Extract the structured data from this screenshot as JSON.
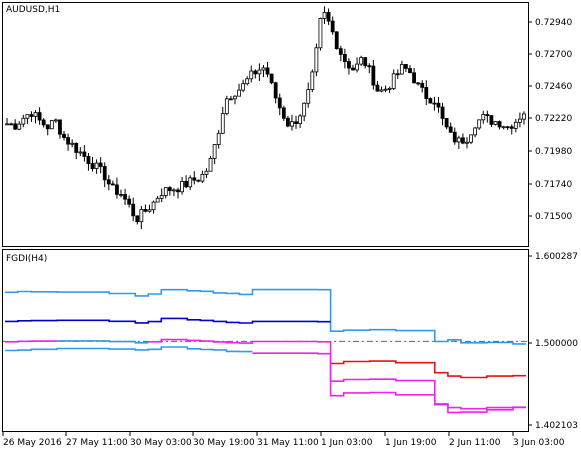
{
  "main_pane": {
    "symbol_label": "AUDUSD,H1",
    "price_ticks": [
      "0.72940",
      "0.72700",
      "0.72460",
      "0.72220",
      "0.71980",
      "0.71740",
      "0.71500"
    ]
  },
  "indicator_pane": {
    "label": "FGDI(H4)",
    "value_ticks": [
      "1.600287",
      "1.500000",
      "1.402103"
    ]
  },
  "time_axis": {
    "labels": [
      "26 May 2016",
      "27 May 11:00",
      "30 May 03:00",
      "30 May 19:00",
      "31 May 11:00",
      "1 Jun 03:00",
      "1 Jun 19:00",
      "2 Jun 11:00",
      "3 Jun 03:00"
    ]
  },
  "colors": {
    "background": "#ffffff",
    "frame": "#000000",
    "candles": "#000000",
    "band_upper": "#3399ee",
    "band_lower": "#3399ee",
    "middle_line": "#0000cc",
    "lower_line_low_state": "#e81010",
    "lower_line_magenta": "#ee22ee",
    "level_line": "#008b8b"
  },
  "chart_data": [
    {
      "type": "candlestick",
      "title": "AUDUSD,H1",
      "ylim": [
        0.7142,
        0.7305
      ],
      "y_ticks": [
        0.7294,
        0.727,
        0.7246,
        0.7222,
        0.7198,
        0.7174,
        0.715
      ],
      "x_labels": [
        "26 May 2016",
        "27 May 11:00",
        "30 May 03:00",
        "30 May 19:00",
        "31 May 11:00",
        "1 Jun 03:00",
        "1 Jun 19:00",
        "2 Jun 11:00",
        "3 Jun 03:00"
      ],
      "close_path": [
        0.7224,
        0.7223,
        0.7228,
        0.7232,
        0.7226,
        0.7222,
        0.7226,
        0.7215,
        0.721,
        0.7205,
        0.72,
        0.7195,
        0.719,
        0.718,
        0.7178,
        0.717,
        0.716,
        0.7165,
        0.717,
        0.7178,
        0.718,
        0.7181,
        0.7183,
        0.7186,
        0.7188,
        0.7195,
        0.7215,
        0.724,
        0.7245,
        0.7248,
        0.7255,
        0.726,
        0.7262,
        0.7245,
        0.7232,
        0.7222,
        0.7228,
        0.7238,
        0.726,
        0.73,
        0.729,
        0.7275,
        0.7265,
        0.726,
        0.7268,
        0.7258,
        0.7245,
        0.7248,
        0.7255,
        0.7262,
        0.7258,
        0.7248,
        0.7242,
        0.724,
        0.7225,
        0.7215,
        0.7212,
        0.7215,
        0.7225,
        0.7228,
        0.7226,
        0.7225,
        0.7222,
        0.7226,
        0.7232
      ]
    },
    {
      "type": "line",
      "title": "FGDI(H4)",
      "ylim": [
        1.393,
        1.609
      ],
      "y_ticks": [
        1.600287,
        1.5,
        1.402103
      ],
      "level": 1.5,
      "series": [
        {
          "name": "",
          "values": [
            1.5585,
            1.5595,
            1.5591,
            1.5591,
            1.5588,
            1.5588,
            1.5588,
            1.5588,
            1.5571,
            1.5571,
            1.5542,
            1.5565,
            1.5616,
            1.5616,
            1.5603,
            1.5597,
            1.5578,
            1.5572,
            1.556,
            1.5617,
            1.5617,
            1.5617,
            1.5617,
            1.5617,
            1.5616,
            1.5121,
            1.5133,
            1.5133,
            1.5139,
            1.5139,
            1.5128,
            1.5128,
            1.5128,
            1.4998,
            1.5018,
            1.4983,
            1.4983,
            1.4987,
            1.4987,
            1.497
          ]
        },
        {
          "name": "",
          "values": [
            1.5238,
            1.5245,
            1.5248,
            1.5248,
            1.5251,
            1.5251,
            1.5251,
            1.5251,
            1.5239,
            1.5239,
            1.522,
            1.5235,
            1.5274,
            1.5274,
            1.5257,
            1.525,
            1.5238,
            1.5226,
            1.5219,
            1.5238,
            1.5238,
            1.5238,
            1.5238,
            1.5238,
            1.5234,
            1.4736,
            1.4759,
            1.4759,
            1.4764,
            1.4764,
            1.4745,
            1.4745,
            1.4745,
            1.4626,
            1.4585,
            1.4569,
            1.4569,
            1.4585,
            1.4585,
            1.459
          ]
        },
        {
          "name": "",
          "values": [
            1.4995,
            1.5001,
            1.5003,
            1.5003,
            1.5005,
            1.5005,
            1.5005,
            1.5005,
            1.4997,
            1.4997,
            1.4982,
            1.4995,
            1.5021,
            1.5021,
            1.5011,
            1.5003,
            1.4993,
            1.4984,
            1.4979,
            1.4998,
            1.4998,
            1.4998,
            1.4998,
            1.4998,
            1.4994,
            1.4524,
            1.4545,
            1.4545,
            1.4548,
            1.4548,
            1.4531,
            1.4531,
            1.4531,
            1.4244,
            1.4209,
            1.4196,
            1.4196,
            1.4209,
            1.4209,
            1.4214
          ]
        },
        {
          "name": "",
          "values": [
            1.4995,
            1.5001,
            1.5003,
            1.5003,
            1.5005,
            1.5005,
            1.5005,
            1.5005,
            1.4997,
            1.4997,
            1.4982,
            1.4995,
            1.5021,
            1.5021,
            1.5011,
            1.5003,
            1.4993,
            1.4984,
            1.4979,
            1.4998,
            1.4998,
            1.4998,
            1.4998,
            1.4998,
            1.4994,
            1.4524,
            1.4545,
            1.4545,
            1.4548,
            1.4548,
            1.4531,
            1.4531,
            1.4531,
            1.4244,
            1.4209,
            1.4196,
            1.4196,
            1.4209,
            1.4209,
            1.4214
          ]
        }
      ]
    }
  ]
}
